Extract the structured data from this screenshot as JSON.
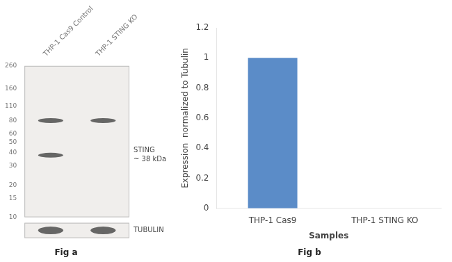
{
  "chart_data": [
    {
      "type": "blot",
      "title": "Fig a",
      "categories": [
        "THP-1 Cas9 Control",
        "THP-1 STING KO"
      ],
      "log": "y",
      "ylim": [
        10,
        260
      ],
      "yticks": [
        260,
        160,
        110,
        80,
        60,
        50,
        40,
        30,
        20,
        15,
        10
      ],
      "bands": [
        [
          80,
          38
        ],
        [
          80
        ]
      ],
      "color": "#444444",
      "annotations": [
        {
          "text": "STING\n~ 38 kDa",
          "y": 38
        },
        {
          "text": "TUBULIN"
        }
      ]
    },
    {
      "type": "bar",
      "title": "Fig b",
      "categories": [
        "THP-1 Cas9",
        "THP-1 STING KO"
      ],
      "values": [
        1.0,
        0.0
      ],
      "color": "#5b8cc8",
      "xlabel": "Samples",
      "ylabel": "Expression  normalized to Tubulin",
      "ylim": [
        0,
        1.2
      ],
      "yticks": [
        0,
        0.2,
        0.4,
        0.6,
        0.8,
        1.0,
        1.2
      ],
      "grid": false
    }
  ]
}
